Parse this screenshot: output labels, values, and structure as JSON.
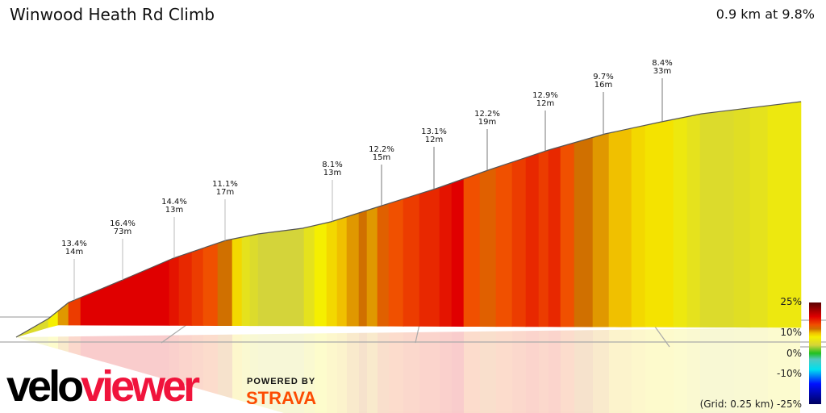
{
  "header": {
    "title": "Winwood Heath Rd Climb",
    "summary": "0.9 km at 9.8%"
  },
  "chart_data": {
    "type": "area",
    "title": "Winwood Heath Rd Climb",
    "subtitle": "0.9 km at 9.8%",
    "description_kind": "3d-gradient-elevation-profile",
    "segment_gradients_pct": [
      5,
      8,
      11,
      15,
      18,
      17,
      16,
      15,
      14,
      12,
      9,
      6,
      5,
      4,
      6,
      8,
      9,
      10,
      11,
      12,
      11,
      13,
      14,
      15,
      16,
      17,
      18,
      14,
      13,
      14,
      15,
      16,
      15,
      16,
      14,
      12,
      11,
      10,
      10,
      9,
      8.5,
      7,
      6,
      5,
      5.5,
      6,
      7
    ],
    "annotations": [
      {
        "gradient": "13.4%",
        "length": "14m"
      },
      {
        "gradient": "16.4%",
        "length": "73m"
      },
      {
        "gradient": "14.4%",
        "length": "13m"
      },
      {
        "gradient": "11.1%",
        "length": "17m"
      },
      {
        "gradient": "8.1%",
        "length": "13m"
      },
      {
        "gradient": "12.2%",
        "length": "15m"
      },
      {
        "gradient": "13.1%",
        "length": "12m"
      },
      {
        "gradient": "12.2%",
        "length": "19m"
      },
      {
        "gradient": "12.9%",
        "length": "12m"
      },
      {
        "gradient": "9.7%",
        "length": "16m"
      },
      {
        "gradient": "8.4%",
        "length": "33m"
      }
    ],
    "grid": "0.25 km",
    "legend": {
      "placement": "bottom-right",
      "ticks": [
        "25%",
        "10%",
        "0%",
        "-10%",
        "-25%"
      ],
      "grid_label": "(Grid: 0.25 km)",
      "color_stops": [
        {
          "v": -25,
          "c": "#000060"
        },
        {
          "v": -15,
          "c": "#0010ff"
        },
        {
          "v": -8,
          "c": "#00e0f0"
        },
        {
          "v": -3,
          "c": "#50c8c0"
        },
        {
          "v": 0,
          "c": "#20c020"
        },
        {
          "v": 4,
          "c": "#d4d43a"
        },
        {
          "v": 8,
          "c": "#f5ef00"
        },
        {
          "v": 10,
          "c": "#f0c000"
        },
        {
          "v": 12,
          "c": "#d07000"
        },
        {
          "v": 14,
          "c": "#f05000"
        },
        {
          "v": 16,
          "c": "#e82800"
        },
        {
          "v": 18,
          "c": "#e00000"
        },
        {
          "v": 25,
          "c": "#5a0000"
        }
      ]
    }
  },
  "branding": {
    "velo": "velo",
    "viewer": "viewer",
    "powered_by": "POWERED BY",
    "strava": "STRAVA"
  }
}
